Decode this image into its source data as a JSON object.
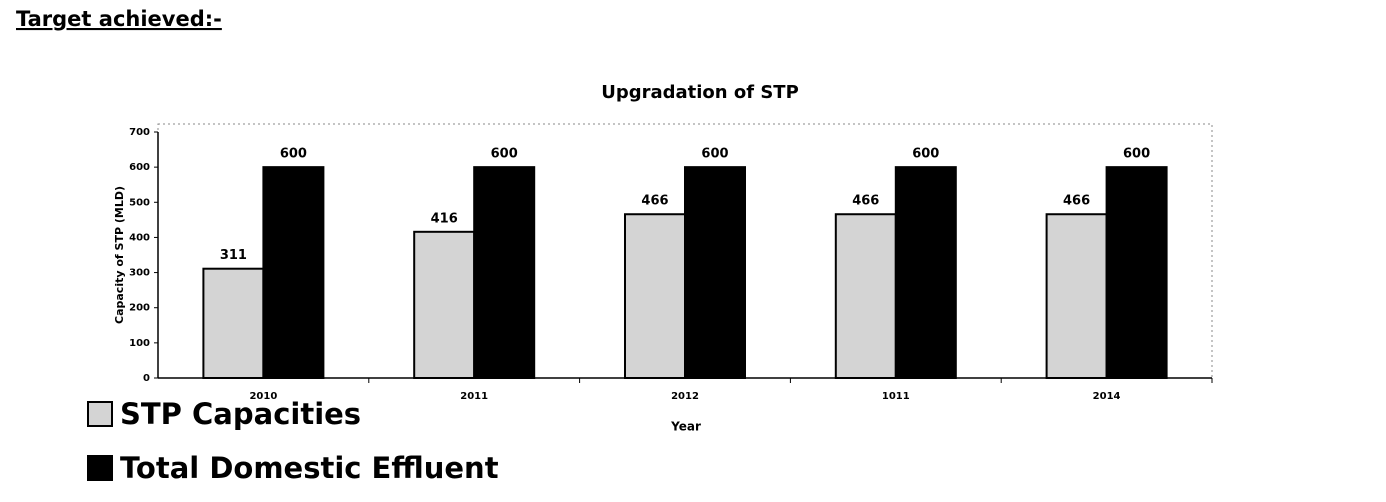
{
  "heading": "Target achieved:-",
  "chart_data": {
    "type": "bar",
    "title": "Upgradation of STP",
    "x_label": "Year",
    "y_label": "Capacity of STP (MLD)",
    "categories": [
      "2010",
      "2011",
      "2012",
      "1011",
      "2014"
    ],
    "series": [
      {
        "name": "STP Capacities",
        "color": "#d4d4d4",
        "values": [
          311,
          416,
          466,
          466,
          466
        ]
      },
      {
        "name": "Total Domestic Effluent",
        "color": "#000000",
        "values": [
          600,
          600,
          600,
          600,
          600
        ]
      }
    ],
    "ylim": [
      0,
      700
    ],
    "yticks": [
      0,
      100,
      200,
      300,
      400,
      500,
      600,
      700
    ],
    "grid": false
  }
}
